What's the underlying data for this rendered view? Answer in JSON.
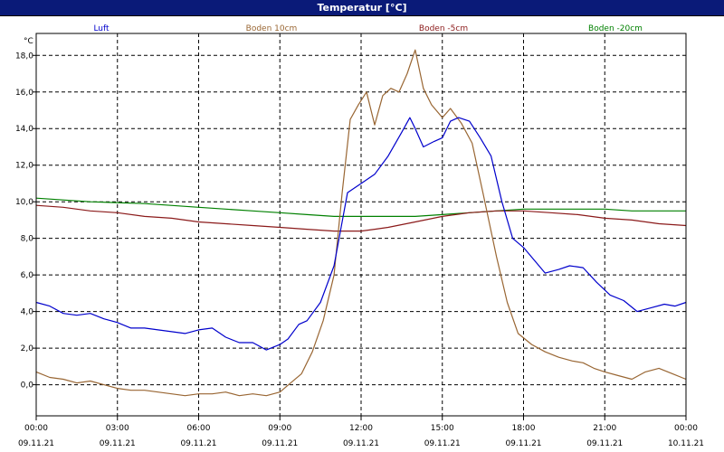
{
  "window": {
    "title": "Temperatur [°C]"
  },
  "chart_data": {
    "type": "line",
    "title": "Temperatur [°C]",
    "ylabel": "°C",
    "xlabel": "",
    "ylim": [
      -1.7,
      19.2
    ],
    "xlim": [
      0,
      24
    ],
    "grid": true,
    "yticks": [
      "0,0",
      "2,0",
      "4,0",
      "6,0",
      "8,0",
      "10,0",
      "12,0",
      "14,0",
      "16,0",
      "18,0"
    ],
    "ytick_values": [
      0,
      2,
      4,
      6,
      8,
      10,
      12,
      14,
      16,
      18
    ],
    "xticks": [
      {
        "time": "00:00",
        "date": "09.11.21"
      },
      {
        "time": "03:00",
        "date": "09.11.21"
      },
      {
        "time": "06:00",
        "date": "09.11.21"
      },
      {
        "time": "09:00",
        "date": "09.11.21"
      },
      {
        "time": "12:00",
        "date": "09.11.21"
      },
      {
        "time": "15:00",
        "date": "09.11.21"
      },
      {
        "time": "18:00",
        "date": "09.11.21"
      },
      {
        "time": "21:00",
        "date": "09.11.21"
      },
      {
        "time": "00:00",
        "date": "10.11.21"
      }
    ],
    "xtick_values": [
      0,
      3,
      6,
      9,
      12,
      15,
      18,
      21,
      24
    ],
    "legend_placement": "top",
    "series": [
      {
        "name": "Luft",
        "color": "#0000cc",
        "points": [
          [
            0,
            4.5
          ],
          [
            0.5,
            4.3
          ],
          [
            1,
            3.9
          ],
          [
            1.5,
            3.8
          ],
          [
            2,
            3.9
          ],
          [
            2.5,
            3.6
          ],
          [
            3,
            3.4
          ],
          [
            3.5,
            3.1
          ],
          [
            4,
            3.1
          ],
          [
            4.5,
            3.0
          ],
          [
            5,
            2.9
          ],
          [
            5.5,
            2.8
          ],
          [
            6,
            3.0
          ],
          [
            6.5,
            3.1
          ],
          [
            7,
            2.6
          ],
          [
            7.5,
            2.3
          ],
          [
            8,
            2.3
          ],
          [
            8.5,
            1.9
          ],
          [
            9,
            2.2
          ],
          [
            9.3,
            2.5
          ],
          [
            9.7,
            3.3
          ],
          [
            10,
            3.5
          ],
          [
            10.5,
            4.5
          ],
          [
            11,
            6.5
          ],
          [
            11.5,
            10.5
          ],
          [
            12,
            11.0
          ],
          [
            12.5,
            11.5
          ],
          [
            13,
            12.5
          ],
          [
            13.5,
            13.8
          ],
          [
            13.8,
            14.6
          ],
          [
            14,
            14.0
          ],
          [
            14.3,
            13.0
          ],
          [
            14.7,
            13.3
          ],
          [
            15,
            13.5
          ],
          [
            15.3,
            14.4
          ],
          [
            15.6,
            14.6
          ],
          [
            16,
            14.4
          ],
          [
            16.4,
            13.5
          ],
          [
            16.8,
            12.5
          ],
          [
            17.2,
            10.0
          ],
          [
            17.6,
            8.0
          ],
          [
            18,
            7.5
          ],
          [
            18.4,
            6.8
          ],
          [
            18.8,
            6.1
          ],
          [
            19.3,
            6.3
          ],
          [
            19.7,
            6.5
          ],
          [
            20.2,
            6.4
          ],
          [
            20.7,
            5.6
          ],
          [
            21.2,
            4.9
          ],
          [
            21.7,
            4.6
          ],
          [
            22.2,
            4.0
          ],
          [
            22.7,
            4.2
          ],
          [
            23.2,
            4.4
          ],
          [
            23.6,
            4.3
          ],
          [
            24,
            4.5
          ]
        ]
      },
      {
        "name": "Boden 10cm",
        "color": "#996633",
        "points": [
          [
            0,
            0.7
          ],
          [
            0.5,
            0.4
          ],
          [
            1,
            0.3
          ],
          [
            1.5,
            0.1
          ],
          [
            2,
            0.2
          ],
          [
            2.5,
            0.0
          ],
          [
            3,
            -0.2
          ],
          [
            3.5,
            -0.3
          ],
          [
            4,
            -0.3
          ],
          [
            4.5,
            -0.4
          ],
          [
            5,
            -0.5
          ],
          [
            5.5,
            -0.6
          ],
          [
            6,
            -0.5
          ],
          [
            6.5,
            -0.5
          ],
          [
            7,
            -0.4
          ],
          [
            7.5,
            -0.6
          ],
          [
            8,
            -0.5
          ],
          [
            8.5,
            -0.6
          ],
          [
            9,
            -0.4
          ],
          [
            9.4,
            0.1
          ],
          [
            9.8,
            0.6
          ],
          [
            10.2,
            1.8
          ],
          [
            10.6,
            3.5
          ],
          [
            11,
            6.0
          ],
          [
            11.3,
            10.5
          ],
          [
            11.6,
            14.5
          ],
          [
            11.9,
            15.3
          ],
          [
            12.2,
            16.0
          ],
          [
            12.5,
            14.2
          ],
          [
            12.8,
            15.8
          ],
          [
            13.1,
            16.2
          ],
          [
            13.4,
            16.0
          ],
          [
            13.7,
            17.0
          ],
          [
            14,
            18.3
          ],
          [
            14.3,
            16.2
          ],
          [
            14.6,
            15.3
          ],
          [
            15,
            14.6
          ],
          [
            15.3,
            15.1
          ],
          [
            15.7,
            14.3
          ],
          [
            16.1,
            13.2
          ],
          [
            16.5,
            10.5
          ],
          [
            17,
            7.0
          ],
          [
            17.4,
            4.5
          ],
          [
            17.8,
            2.8
          ],
          [
            18.3,
            2.2
          ],
          [
            18.8,
            1.8
          ],
          [
            19.3,
            1.5
          ],
          [
            19.8,
            1.3
          ],
          [
            20.2,
            1.2
          ],
          [
            20.6,
            0.9
          ],
          [
            21,
            0.7
          ],
          [
            21.5,
            0.5
          ],
          [
            22,
            0.3
          ],
          [
            22.5,
            0.7
          ],
          [
            23,
            0.9
          ],
          [
            23.5,
            0.6
          ],
          [
            24,
            0.3
          ]
        ]
      },
      {
        "name": "Boden -5cm",
        "color": "#8b1a1a",
        "points": [
          [
            0,
            9.8
          ],
          [
            1,
            9.7
          ],
          [
            2,
            9.5
          ],
          [
            3,
            9.4
          ],
          [
            4,
            9.2
          ],
          [
            5,
            9.1
          ],
          [
            6,
            8.9
          ],
          [
            7,
            8.8
          ],
          [
            8,
            8.7
          ],
          [
            9,
            8.6
          ],
          [
            10,
            8.5
          ],
          [
            11,
            8.4
          ],
          [
            12,
            8.4
          ],
          [
            12.5,
            8.5
          ],
          [
            13,
            8.6
          ],
          [
            14,
            8.9
          ],
          [
            15,
            9.2
          ],
          [
            16,
            9.4
          ],
          [
            17,
            9.5
          ],
          [
            18,
            9.5
          ],
          [
            19,
            9.4
          ],
          [
            20,
            9.3
          ],
          [
            21,
            9.1
          ],
          [
            22,
            9.0
          ],
          [
            23,
            8.8
          ],
          [
            24,
            8.7
          ]
        ]
      },
      {
        "name": "Boden -20cm",
        "color": "#008000",
        "points": [
          [
            0,
            10.2
          ],
          [
            2,
            10.0
          ],
          [
            4,
            9.9
          ],
          [
            6,
            9.7
          ],
          [
            8,
            9.5
          ],
          [
            9,
            9.4
          ],
          [
            10,
            9.3
          ],
          [
            11,
            9.2
          ],
          [
            12,
            9.2
          ],
          [
            13,
            9.2
          ],
          [
            14,
            9.2
          ],
          [
            15,
            9.3
          ],
          [
            16,
            9.4
          ],
          [
            17,
            9.5
          ],
          [
            18,
            9.6
          ],
          [
            19,
            9.6
          ],
          [
            20,
            9.6
          ],
          [
            21,
            9.6
          ],
          [
            22,
            9.5
          ],
          [
            23,
            9.5
          ],
          [
            24,
            9.5
          ]
        ]
      }
    ]
  }
}
